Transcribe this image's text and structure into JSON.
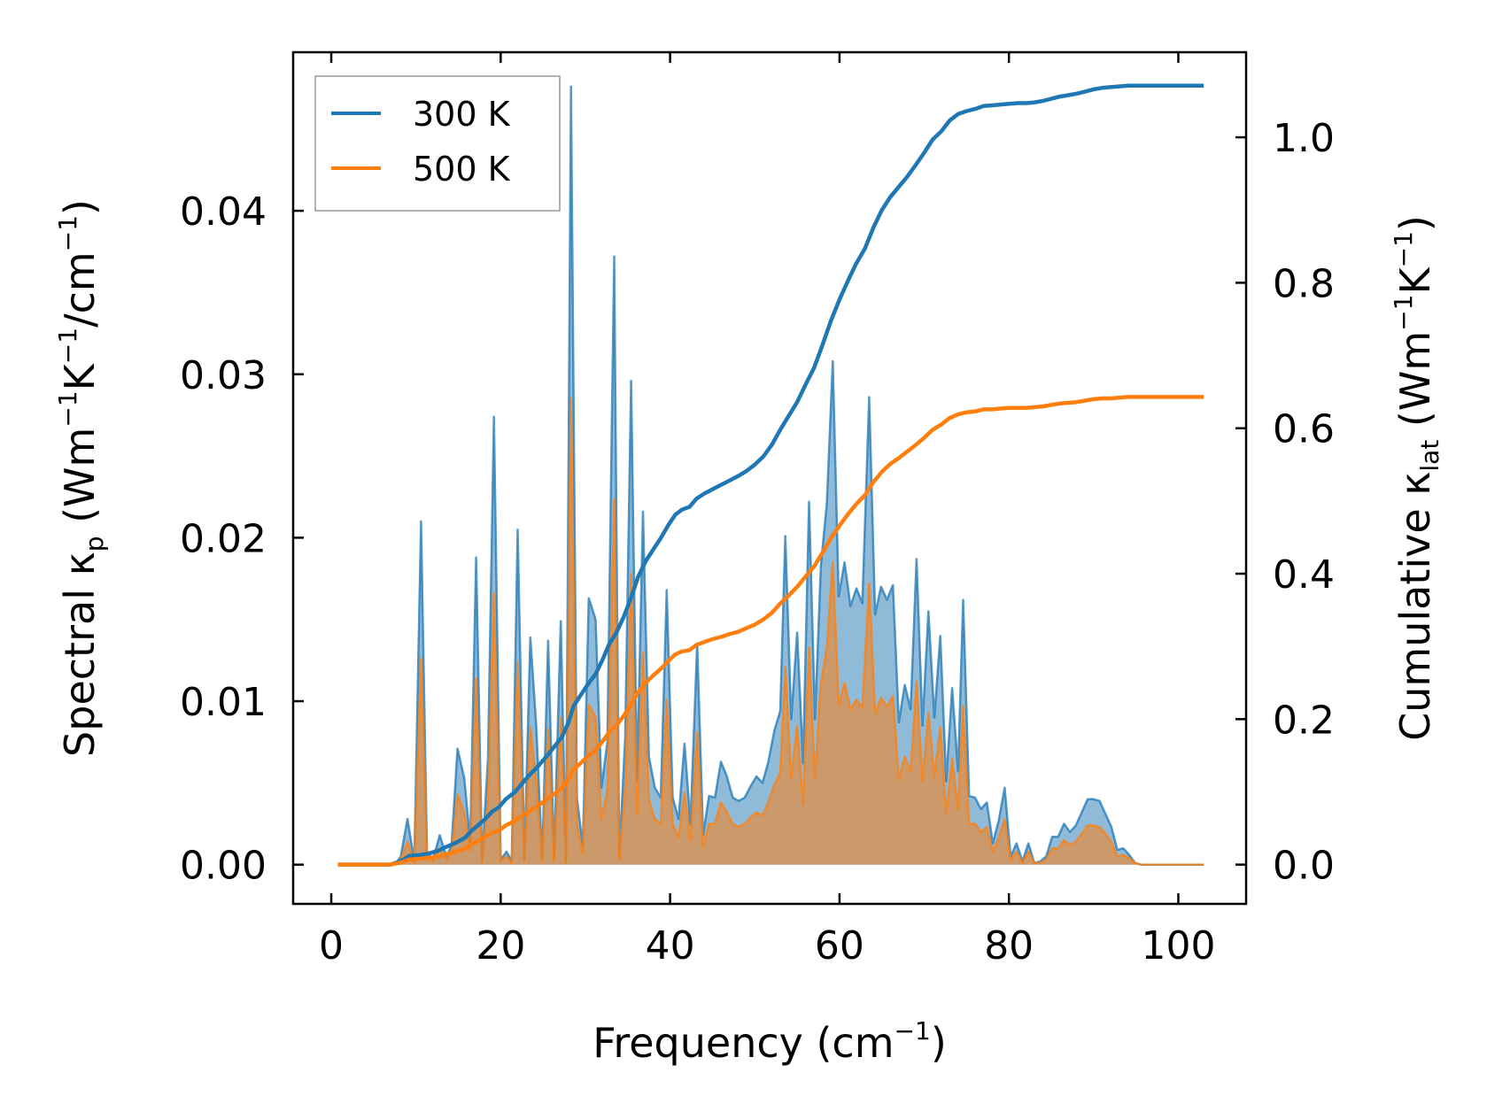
{
  "chart_data": {
    "type": "line",
    "title": "",
    "xlabel": "Frequency (cm",
    "xlabel_parts": {
      "base": "Frequency (cm",
      "sup": "−1",
      "end": ")"
    },
    "ylabel_left_parts": {
      "a": "Spectral κ",
      "sub": "p",
      "b": " (Wm",
      "sup1": "−1",
      "c": "K",
      "sup2": "−1",
      "d": "/cm",
      "sup3": "−1",
      "e": ")"
    },
    "ylabel_right_parts": {
      "a": "Cumulative κ",
      "sub": "lat",
      "b": " (Wm",
      "sup1": "−1",
      "c": "K",
      "sup2": "−1",
      "d": ")"
    },
    "xlim": [
      -4.5,
      108
    ],
    "ylim_left": [
      -0.0024,
      0.0497
    ],
    "ylim_right": [
      -0.054,
      1.117
    ],
    "xticks": [
      0,
      20,
      40,
      60,
      80,
      100
    ],
    "xtick_labels": [
      "0",
      "20",
      "40",
      "60",
      "80",
      "100"
    ],
    "yticks_left": [
      0,
      0.01,
      0.02,
      0.03,
      0.04
    ],
    "ytick_labels_left": [
      "0.00",
      "0.01",
      "0.02",
      "0.03",
      "0.04"
    ],
    "yticks_right": [
      0,
      0.2,
      0.4,
      0.6,
      0.8,
      1.0
    ],
    "ytick_labels_right": [
      "0.0",
      "0.2",
      "0.4",
      "0.6",
      "0.8",
      "1.0"
    ],
    "legend": {
      "placement": "top-left",
      "entries": [
        "300 K",
        "500 K"
      ]
    },
    "colors": {
      "300K": "#1f77b4",
      "500K": "#ff7f0e",
      "fill300": "#1f77b4",
      "fill500": "#ff7f0e"
    },
    "spectral": {
      "x": [
        0.8,
        7.5,
        8.2,
        9.0,
        9.8,
        10.6,
        11.3,
        12.0,
        12.8,
        13.6,
        14.2,
        14.9,
        15.7,
        16.4,
        17.1,
        17.8,
        18.5,
        19.2,
        20.0,
        20.7,
        21.3,
        22.0,
        22.8,
        23.5,
        24.2,
        24.9,
        25.6,
        26.3,
        27.1,
        27.7,
        28.3,
        29.0,
        29.7,
        30.4,
        31.2,
        31.9,
        32.6,
        33.4,
        34.0,
        34.7,
        35.4,
        36.1,
        36.8,
        37.5,
        38.2,
        38.9,
        39.6,
        40.3,
        41.0,
        41.7,
        42.4,
        43.2,
        43.9,
        44.6,
        45.3,
        46.0,
        46.7,
        47.4,
        48.1,
        48.8,
        49.5,
        50.2,
        50.9,
        51.6,
        52.3,
        53.0,
        53.6,
        54.3,
        55.0,
        55.7,
        56.4,
        57.1,
        57.8,
        58.5,
        59.2,
        59.9,
        60.6,
        61.3,
        62.0,
        62.7,
        63.5,
        64.2,
        64.9,
        65.6,
        66.3,
        67.0,
        67.7,
        68.4,
        69.1,
        69.8,
        70.5,
        71.2,
        71.9,
        72.6,
        73.3,
        74.0,
        74.6,
        75.3,
        76.0,
        76.7,
        77.4,
        78.1,
        78.8,
        79.5,
        80.2,
        80.9,
        81.6,
        82.3,
        83.0,
        83.7,
        84.4,
        85.1,
        85.8,
        86.5,
        87.2,
        87.9,
        88.6,
        89.3,
        90.0,
        90.7,
        91.4,
        92.1,
        92.8,
        93.5,
        94.2,
        94.9,
        95.6,
        103.0
      ],
      "y300": [
        0,
        0,
        0.0005,
        0.0028,
        0.0002,
        0.021,
        0.0008,
        0.0003,
        0.0018,
        0.0005,
        0.0012,
        0.0071,
        0.0053,
        0.0014,
        0.0188,
        0.0002,
        0.0065,
        0.0274,
        0.0003,
        0.0008,
        0.0002,
        0.0205,
        0.0003,
        0.0139,
        0.0085,
        0.0003,
        0.0137,
        0.0004,
        0.0149,
        0.0002,
        0.0476,
        0.0041,
        0.0011,
        0.0163,
        0.015,
        0.0047,
        0.0075,
        0.0372,
        0.0005,
        0.0077,
        0.0296,
        0.0051,
        0.0216,
        0.0066,
        0.0047,
        0.0041,
        0.0168,
        0.0041,
        0.0028,
        0.0074,
        0.0025,
        0.0135,
        0.0018,
        0.0042,
        0.0041,
        0.0063,
        0.0054,
        0.0041,
        0.0039,
        0.0041,
        0.0048,
        0.0054,
        0.005,
        0.0063,
        0.0082,
        0.0094,
        0.0201,
        0.0089,
        0.0142,
        0.0062,
        0.0222,
        0.0089,
        0.0183,
        0.0221,
        0.0308,
        0.0164,
        0.0185,
        0.0158,
        0.0169,
        0.016,
        0.0286,
        0.0153,
        0.017,
        0.0162,
        0.0171,
        0.0087,
        0.011,
        0.0095,
        0.0187,
        0.0085,
        0.0155,
        0.009,
        0.014,
        0.0051,
        0.0108,
        0.0057,
        0.0162,
        0.0042,
        0.0041,
        0.0034,
        0.0038,
        0.0013,
        0.0027,
        0.0047,
        0.0005,
        0.0013,
        0.0002,
        0.0013,
        0.0001,
        0.0002,
        0.0005,
        0.0017,
        0.0017,
        0.0025,
        0.002,
        0.0024,
        0.0032,
        0.004,
        0.004,
        0.0039,
        0.0031,
        0.0023,
        0.0009,
        0.001,
        0.0006,
        0.0001,
        0,
        0
      ],
      "y500": [
        0,
        0,
        0.0003,
        0.0014,
        0.0001,
        0.0126,
        0.0005,
        0.0002,
        0.001,
        0.0003,
        0.0007,
        0.0043,
        0.0032,
        0.0008,
        0.0114,
        0.0001,
        0.0039,
        0.0166,
        0.0002,
        0.0005,
        0.0001,
        0.0124,
        0.0002,
        0.0084,
        0.0051,
        0.0002,
        0.0083,
        0.0002,
        0.009,
        0.0001,
        0.0285,
        0.0025,
        0.0007,
        0.0098,
        0.009,
        0.0028,
        0.0045,
        0.0224,
        0.0003,
        0.0046,
        0.0178,
        0.0031,
        0.013,
        0.004,
        0.0028,
        0.0025,
        0.0101,
        0.0025,
        0.0017,
        0.0044,
        0.0015,
        0.0081,
        0.0011,
        0.0025,
        0.0025,
        0.0038,
        0.0032,
        0.0025,
        0.0023,
        0.0025,
        0.0029,
        0.0032,
        0.003,
        0.0038,
        0.0049,
        0.0056,
        0.0121,
        0.0053,
        0.0085,
        0.0037,
        0.0133,
        0.0053,
        0.011,
        0.0133,
        0.0185,
        0.0098,
        0.0111,
        0.0095,
        0.0101,
        0.0096,
        0.0172,
        0.0092,
        0.0102,
        0.0097,
        0.0103,
        0.0052,
        0.0066,
        0.0057,
        0.0112,
        0.0051,
        0.0093,
        0.0054,
        0.0084,
        0.0031,
        0.0065,
        0.0034,
        0.0097,
        0.0025,
        0.0025,
        0.002,
        0.0023,
        0.0008,
        0.0016,
        0.0028,
        0.0003,
        0.0008,
        0.0001,
        0.0008,
        0.0001,
        0.0001,
        0.0003,
        0.001,
        0.001,
        0.0015,
        0.0012,
        0.0014,
        0.0019,
        0.0024,
        0.0024,
        0.0023,
        0.0019,
        0.0014,
        0.0005,
        0.0006,
        0.0004,
        0.0001,
        0,
        0
      ]
    },
    "series": [
      {
        "name": "300 K",
        "x": [
          0.8,
          7.0,
          8.3,
          9.2,
          10.3,
          11.4,
          12.6,
          13.5,
          14.7,
          15.8,
          16.6,
          17.4,
          18.2,
          19.0,
          19.8,
          20.6,
          21.7,
          22.5,
          23.3,
          24.4,
          25.5,
          26.4,
          27.2,
          28.0,
          28.6,
          29.4,
          30.3,
          31.2,
          32.0,
          32.8,
          33.7,
          34.5,
          35.3,
          36.2,
          37.1,
          38.0,
          38.9,
          39.8,
          40.6,
          41.4,
          42.3,
          43.1,
          44.0,
          45.0,
          46.0,
          47.0,
          48.0,
          49.0,
          50.0,
          51.0,
          52.0,
          53.0,
          54.0,
          55.0,
          56.0,
          57.0,
          58.0,
          59.0,
          60.0,
          61.0,
          62.0,
          63.0,
          64.0,
          65.0,
          66.0,
          67.0,
          68.0,
          69.0,
          70.0,
          71.0,
          72.0,
          73.0,
          74.0,
          75.0,
          76.0,
          77.0,
          78.0,
          79.0,
          80.0,
          81.0,
          82.0,
          83.0,
          84.0,
          85.0,
          86.0,
          87.0,
          88.0,
          89.0,
          90.0,
          91.0,
          92.0,
          93.0,
          94.0,
          95.0,
          103.0
        ],
        "y": [
          0,
          0,
          0.005,
          0.012,
          0.013,
          0.015,
          0.019,
          0.024,
          0.03,
          0.037,
          0.047,
          0.055,
          0.063,
          0.073,
          0.079,
          0.09,
          0.1,
          0.111,
          0.122,
          0.135,
          0.15,
          0.163,
          0.175,
          0.195,
          0.218,
          0.232,
          0.248,
          0.262,
          0.281,
          0.303,
          0.32,
          0.34,
          0.364,
          0.395,
          0.417,
          0.433,
          0.449,
          0.467,
          0.481,
          0.488,
          0.492,
          0.503,
          0.51,
          0.516,
          0.522,
          0.528,
          0.534,
          0.541,
          0.55,
          0.561,
          0.577,
          0.598,
          0.617,
          0.636,
          0.66,
          0.683,
          0.715,
          0.748,
          0.777,
          0.803,
          0.827,
          0.847,
          0.876,
          0.9,
          0.918,
          0.932,
          0.946,
          0.962,
          0.979,
          0.997,
          1.008,
          1.023,
          1.032,
          1.036,
          1.039,
          1.043,
          1.044,
          1.045,
          1.046,
          1.047,
          1.047,
          1.048,
          1.05,
          1.053,
          1.056,
          1.058,
          1.06,
          1.063,
          1.066,
          1.068,
          1.069,
          1.07,
          1.071,
          1.071,
          1.071
        ]
      },
      {
        "name": "500 K",
        "x": [
          0.8,
          7.0,
          8.3,
          9.2,
          10.3,
          11.4,
          12.6,
          13.5,
          14.7,
          15.8,
          16.6,
          17.4,
          18.2,
          19.0,
          19.8,
          20.6,
          21.7,
          22.5,
          23.3,
          24.4,
          25.5,
          26.4,
          27.2,
          28.0,
          28.6,
          29.4,
          30.3,
          31.2,
          32.0,
          32.8,
          33.7,
          34.5,
          35.3,
          36.2,
          37.1,
          38.0,
          38.9,
          39.8,
          40.6,
          41.4,
          42.3,
          43.1,
          44.0,
          45.0,
          46.0,
          47.0,
          48.0,
          49.0,
          50.0,
          51.0,
          52.0,
          53.0,
          54.0,
          55.0,
          56.0,
          57.0,
          58.0,
          59.0,
          60.0,
          61.0,
          62.0,
          63.0,
          64.0,
          65.0,
          66.0,
          67.0,
          68.0,
          69.0,
          70.0,
          71.0,
          72.0,
          73.0,
          74.0,
          75.0,
          76.0,
          77.0,
          78.0,
          79.0,
          80.0,
          81.0,
          82.0,
          83.0,
          84.0,
          85.0,
          86.0,
          87.0,
          88.0,
          89.0,
          90.0,
          91.0,
          92.0,
          93.0,
          94.0,
          95.0,
          103.0
        ],
        "y": [
          0,
          0,
          0.003,
          0.007,
          0.008,
          0.009,
          0.011,
          0.014,
          0.018,
          0.022,
          0.028,
          0.033,
          0.038,
          0.044,
          0.047,
          0.054,
          0.06,
          0.067,
          0.073,
          0.081,
          0.09,
          0.098,
          0.105,
          0.117,
          0.131,
          0.139,
          0.149,
          0.157,
          0.169,
          0.182,
          0.192,
          0.204,
          0.218,
          0.237,
          0.25,
          0.26,
          0.269,
          0.28,
          0.289,
          0.293,
          0.295,
          0.302,
          0.306,
          0.31,
          0.313,
          0.317,
          0.32,
          0.325,
          0.33,
          0.337,
          0.346,
          0.359,
          0.37,
          0.382,
          0.396,
          0.41,
          0.429,
          0.449,
          0.466,
          0.482,
          0.496,
          0.508,
          0.526,
          0.54,
          0.551,
          0.559,
          0.568,
          0.577,
          0.587,
          0.598,
          0.605,
          0.614,
          0.619,
          0.622,
          0.623,
          0.626,
          0.626,
          0.627,
          0.628,
          0.628,
          0.628,
          0.629,
          0.63,
          0.632,
          0.634,
          0.635,
          0.636,
          0.638,
          0.64,
          0.641,
          0.641,
          0.642,
          0.643,
          0.643,
          0.643
        ]
      }
    ]
  }
}
